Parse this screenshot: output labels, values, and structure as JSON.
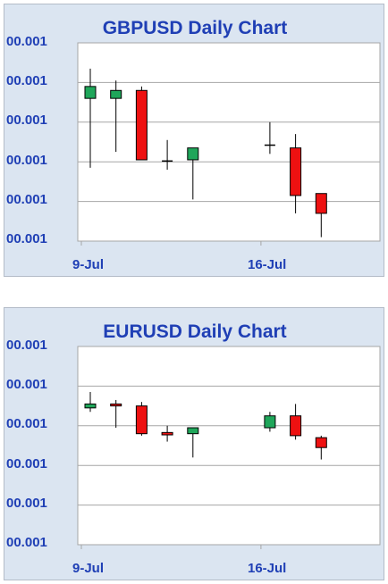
{
  "colors": {
    "panel_bg": "#dbe5f1",
    "plot_bg": "#ffffff",
    "grid": "#a6a6a6",
    "text": "#1f3fb5",
    "up": "#1fa65a",
    "down": "#ee1111"
  },
  "chart_data": [
    {
      "type": "candlestick",
      "title": "GBPUSD Daily Chart",
      "ytick_labels": [
        "00.001",
        "00.001",
        "00.001",
        "00.001",
        "00.001",
        "00.001"
      ],
      "xtick_labels": [
        "9-Jul",
        "16-Jul"
      ],
      "grid": true,
      "candles": [
        {
          "x": 0,
          "open": 3.6,
          "close": 3.9,
          "high": 4.35,
          "low": 1.85
        },
        {
          "x": 1,
          "open": 3.6,
          "close": 3.8,
          "high": 4.05,
          "low": 2.25
        },
        {
          "x": 2,
          "open": 3.8,
          "close": 2.05,
          "high": 3.9,
          "low": 2.05
        },
        {
          "x": 3,
          "open": 2.02,
          "close": 1.98,
          "high": 2.55,
          "low": 1.8
        },
        {
          "x": 4,
          "open": 2.05,
          "close": 2.35,
          "high": 2.35,
          "low": 1.05
        },
        {
          "x": 7,
          "open": 2.38,
          "close": 2.42,
          "high": 3.0,
          "low": 2.2
        },
        {
          "x": 8,
          "open": 2.35,
          "close": 1.15,
          "high": 2.7,
          "low": 0.7
        },
        {
          "x": 9,
          "open": 1.2,
          "close": 0.7,
          "high": 1.2,
          "low": 0.1
        }
      ]
    },
    {
      "type": "candlestick",
      "title": "EURUSD Daily Chart",
      "ytick_labels": [
        "00.001",
        "00.001",
        "00.001",
        "00.001",
        "00.001",
        "00.001"
      ],
      "xtick_labels": [
        "9-Jul",
        "16-Jul"
      ],
      "grid": true,
      "candles": [
        {
          "x": 0,
          "open": 3.45,
          "close": 3.55,
          "high": 3.85,
          "low": 3.35
        },
        {
          "x": 1,
          "open": 3.55,
          "close": 3.5,
          "high": 3.65,
          "low": 2.95
        },
        {
          "x": 2,
          "open": 3.5,
          "close": 2.8,
          "high": 3.6,
          "low": 2.75
        },
        {
          "x": 3,
          "open": 2.83,
          "close": 2.77,
          "high": 3.0,
          "low": 2.6
        },
        {
          "x": 4,
          "open": 2.8,
          "close": 2.95,
          "high": 2.95,
          "low": 2.2
        },
        {
          "x": 7,
          "open": 2.95,
          "close": 3.25,
          "high": 3.35,
          "low": 2.85
        },
        {
          "x": 8,
          "open": 3.25,
          "close": 2.75,
          "high": 3.55,
          "low": 2.65
        },
        {
          "x": 9,
          "open": 2.7,
          "close": 2.45,
          "high": 2.75,
          "low": 2.15
        }
      ]
    }
  ]
}
